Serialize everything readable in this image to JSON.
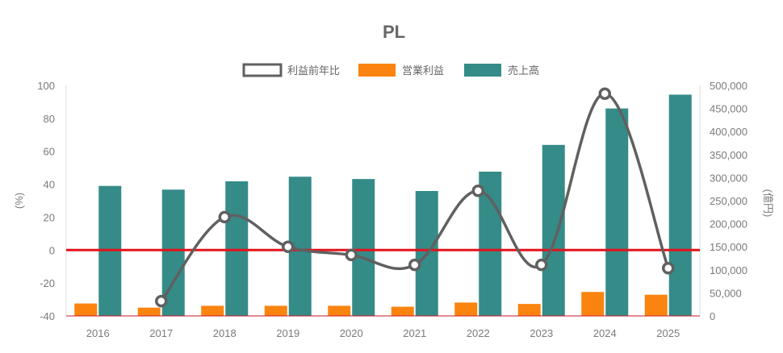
{
  "chart_data": {
    "type": "bar",
    "title": "PL",
    "categories": [
      "2016",
      "2017",
      "2018",
      "2019",
      "2020",
      "2021",
      "2022",
      "2023",
      "2024",
      "2025"
    ],
    "series": [
      {
        "name": "利益前年比",
        "type": "line",
        "axis": "left",
        "color": "#606060",
        "values": [
          null,
          -31,
          20,
          2,
          -3,
          -9,
          36,
          -9,
          95,
          -11
        ]
      },
      {
        "name": "営業利益",
        "type": "bar",
        "axis": "right",
        "color": "#fa840f",
        "values": [
          27000,
          18000,
          22000,
          22000,
          22000,
          20000,
          29000,
          26000,
          52000,
          46000
        ]
      },
      {
        "name": "売上高",
        "type": "bar",
        "axis": "right",
        "color": "#358b87",
        "values": [
          282000,
          274000,
          292000,
          302000,
          297000,
          271000,
          313000,
          371000,
          450000,
          480000
        ]
      }
    ],
    "y_left": {
      "label": "(%)",
      "lim": [
        -40,
        100
      ],
      "ticks": [
        "100",
        "80",
        "60",
        "40",
        "20",
        "0",
        "-20",
        "-40"
      ]
    },
    "y_right": {
      "label": "(億円)",
      "lim": [
        0,
        500000
      ],
      "ticks": [
        "500,000",
        "450,000",
        "400,000",
        "350,000",
        "300,000",
        "250,000",
        "200,000",
        "150,000",
        "100,000",
        "50,000",
        "0"
      ]
    },
    "reference_line": {
      "value": 0,
      "axis": "left",
      "color": "#e4131b"
    },
    "legend_position": "top-center",
    "grid": false
  }
}
